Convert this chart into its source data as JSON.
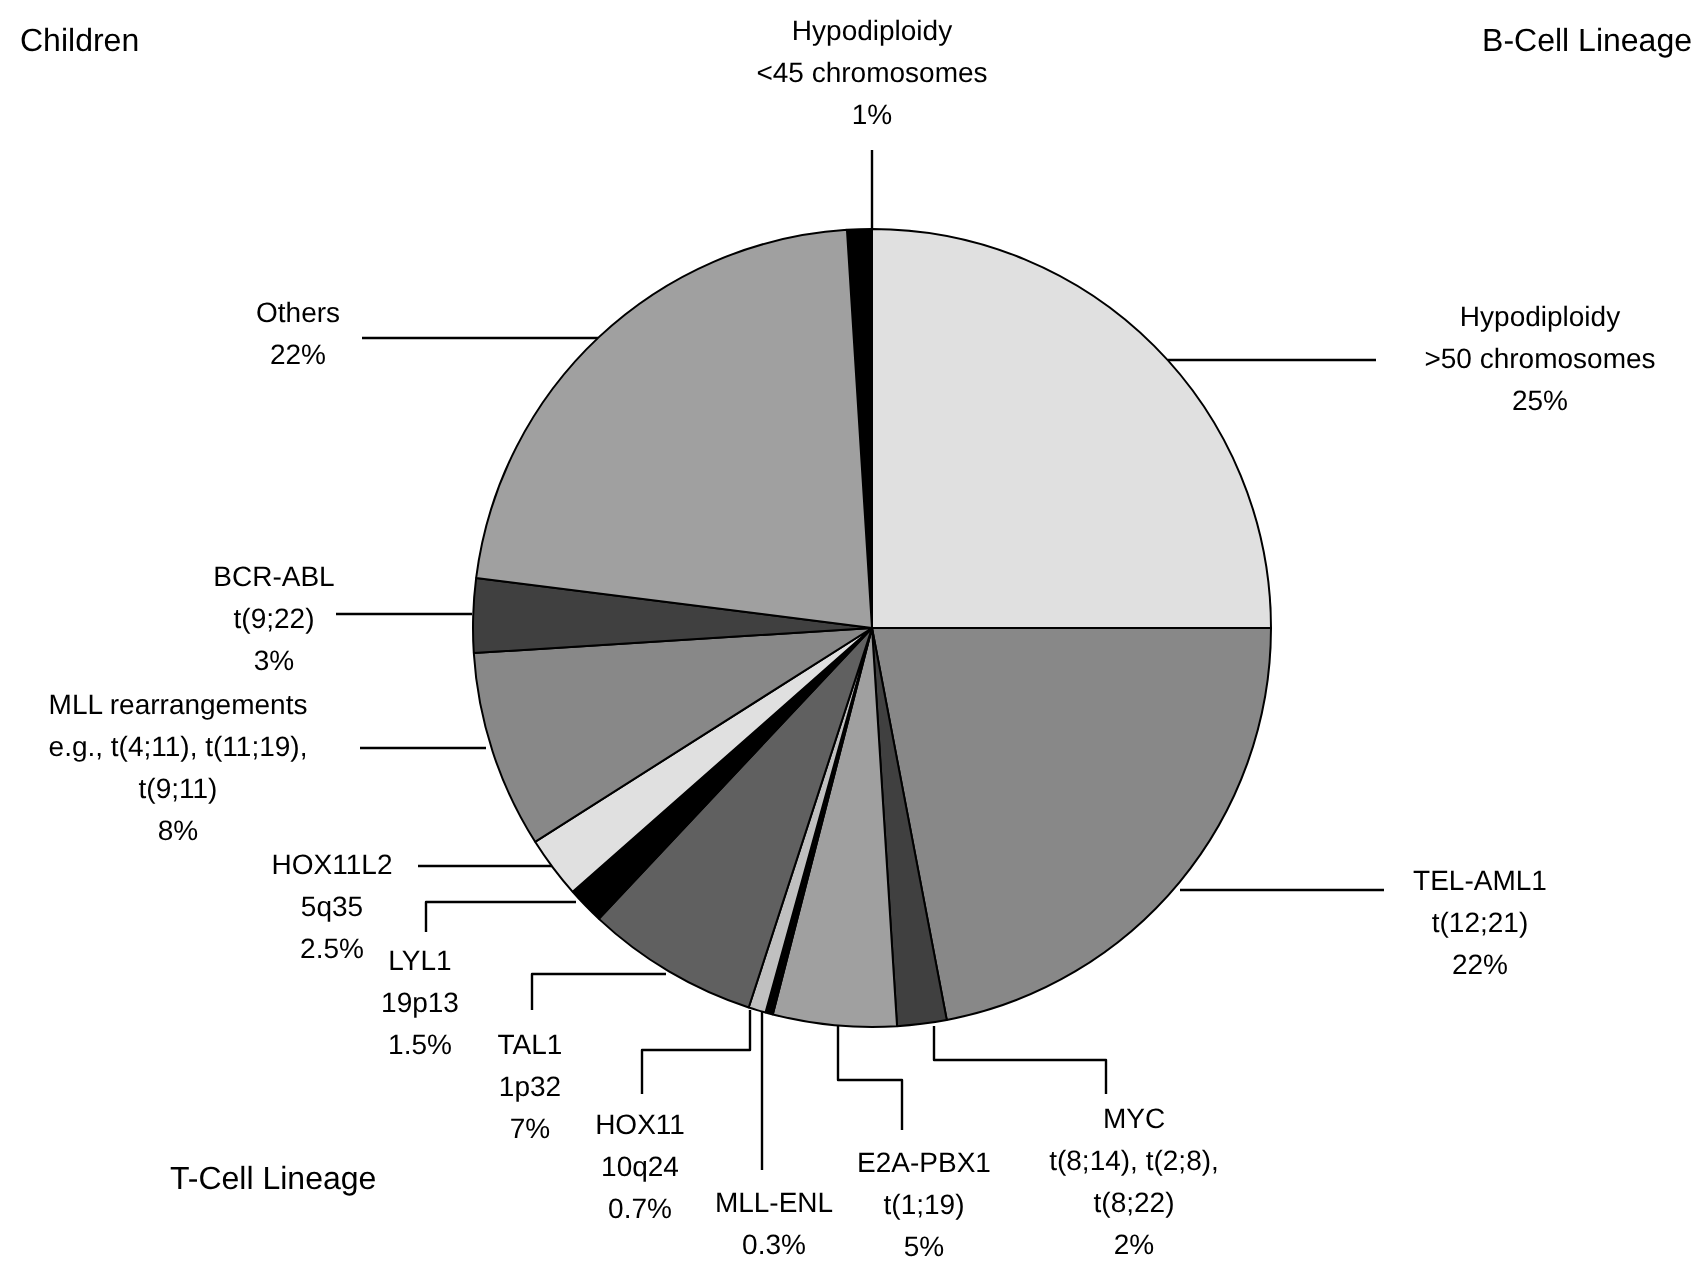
{
  "chart_data": {
    "type": "pie",
    "categories": [
      "Hypodiploidy\n<45 chromosomes",
      "Hypodiploidy\n>50 chromosomes",
      "TEL-AML1\nt(12;21)",
      "MYC\nt(8;14), t(2;8),\nt(8;22)",
      "E2A-PBX1\nt(1;19)",
      "MLL-ENL",
      "HOX11\n10q24",
      "TAL1\n1p32",
      "LYL1\n19p13",
      "HOX11L2\n5q35",
      "MLL rearrangements\ne.g., t(4;11), t(11;19),\nt(9;11)",
      "BCR-ABL\nt(9;22)",
      "Others"
    ],
    "values": [
      1,
      25,
      22,
      2,
      5,
      0.3,
      0.7,
      7,
      1.5,
      2.5,
      8,
      3,
      22
    ],
    "value_labels": [
      "1%",
      "25%",
      "22%",
      "2%",
      "5%",
      "0.3%",
      "0.7%",
      "7%",
      "1.5%",
      "2.5%",
      "8%",
      "3%",
      "22%"
    ],
    "colors": [
      "#000000",
      "#e0e0e0",
      "#888888",
      "#404040",
      "#a0a0a0",
      "#000000",
      "#c0c0c0",
      "#606060",
      "#000000",
      "#e0e0e0",
      "#888888",
      "#404040",
      "#a0a0a0"
    ],
    "annotations": [
      "Children",
      "B-Cell Lineage",
      "T-Cell Lineage"
    ]
  }
}
